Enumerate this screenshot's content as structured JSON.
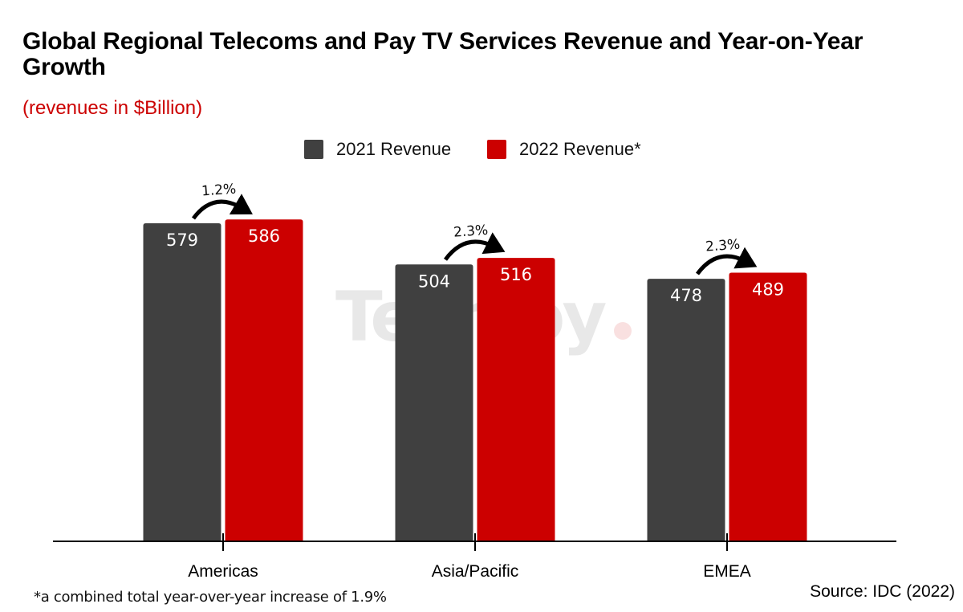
{
  "title": "Global Regional Telecoms and Pay TV Services Revenue and Year-on-Year Growth",
  "subtitle": "(revenues in $Billion)",
  "footnote": "*a combined total year-over-year increase of 1.9%",
  "source": "Source: IDC (2022)",
  "watermark": {
    "text": "Techloy",
    "dot": "."
  },
  "colors": {
    "series_2021": "#404040",
    "series_2022": "#cc0000",
    "subtitle": "#cc0000"
  },
  "chart_data": {
    "type": "bar",
    "title": "Global Regional Telecoms and Pay TV Services Revenue and Year-on-Year Growth",
    "subtitle": "(revenues in $Billion)",
    "xlabel": "",
    "ylabel": "",
    "categories": [
      "Americas",
      "Asia/Pacific",
      "EMEA"
    ],
    "series": [
      {
        "name": "2021 Revenue",
        "values": [
          579,
          504,
          478
        ],
        "color": "#404040"
      },
      {
        "name": "2022 Revenue*",
        "values": [
          586,
          516,
          489
        ],
        "color": "#cc0000"
      }
    ],
    "growth_annotations": [
      "1.2%",
      "2.3%",
      "2.3%"
    ],
    "ylim": [
      0,
      600
    ],
    "grid": false,
    "legend": "top-center",
    "data_labels": true
  }
}
